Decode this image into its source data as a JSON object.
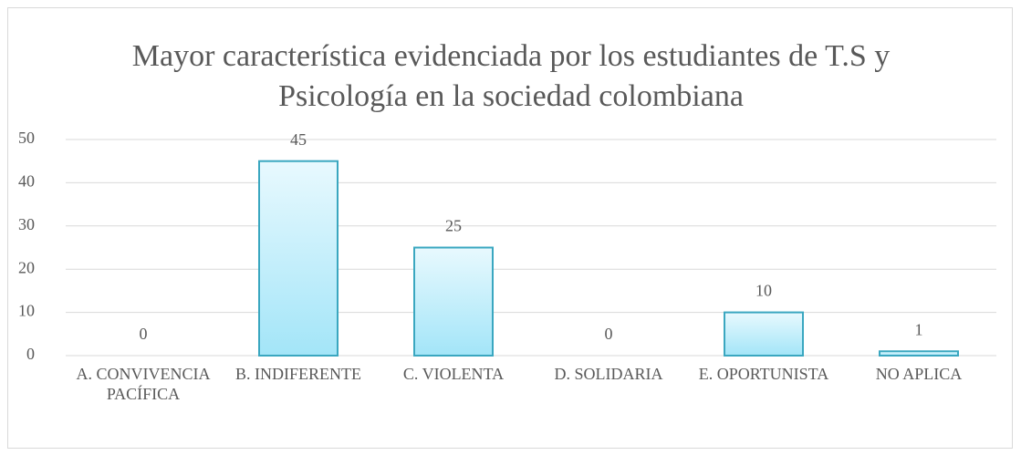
{
  "chart_data": {
    "type": "bar",
    "title": "Mayor característica evidenciada por los estudiantes de T.S y Psicología en la sociedad colombiana",
    "categories": [
      "A. CONVIVENCIA PACÍFICA",
      "B. INDIFERENTE",
      "C. VIOLENTA",
      "D. SOLIDARIA",
      "E. OPORTUNISTA",
      "NO APLICA"
    ],
    "values": [
      0,
      45,
      25,
      0,
      10,
      1
    ],
    "color": "#3aa7c0",
    "ylim": [
      0,
      50
    ],
    "yticks": [
      0,
      10,
      20,
      30,
      40,
      50
    ],
    "grid": true
  }
}
